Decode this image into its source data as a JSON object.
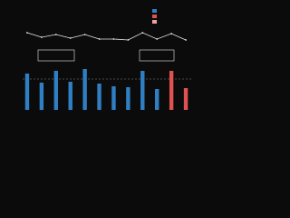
{
  "chart_data": {
    "type": "bar",
    "series": [
      {
        "values": [
          40,
          30,
          43,
          31,
          45,
          29,
          26,
          25,
          43,
          23,
          43,
          24
        ],
        "colors": [
          "#2f7fc4",
          "#2f7fc4",
          "#2f7fc4",
          "#2f7fc4",
          "#2f7fc4",
          "#2f7fc4",
          "#2f7fc4",
          "#2f7fc4",
          "#2f7fc4",
          "#2f7fc4",
          "#e05252",
          "#e05252"
        ]
      },
      {
        "type": "line",
        "axis": "y2",
        "color": "#e8e8e8",
        "values": [
          14.5,
          10,
          12.7,
          9.1,
          12.7,
          8.2,
          8.2,
          7.3,
          14.5,
          8.2,
          13.6,
          7.3
        ]
      }
    ],
    "ylim": [
      0,
      50
    ],
    "y2lim": [
      0,
      20
    ]
  }
}
